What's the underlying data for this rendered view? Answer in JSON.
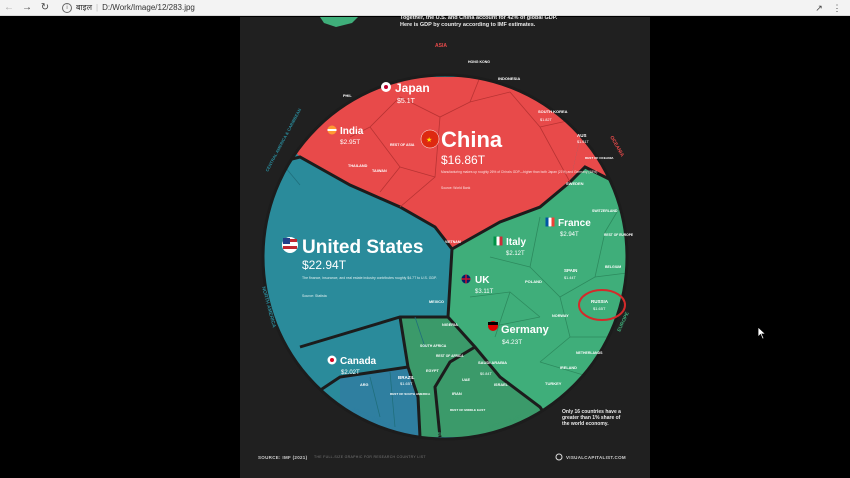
{
  "toolbar": {
    "back_icon": "arrow-left-icon",
    "forward_icon": "arrow-right-icon",
    "reload_icon": "reload-icon",
    "info_icon": "info-icon",
    "file_label": "बाइल",
    "path": "D:/Work/Image/12/283.jpg",
    "share_icon": "share-icon",
    "more_icon": "more-icon"
  },
  "poster": {
    "heading_line1": "Together, the U.S. and China account for 42% of global GDP.",
    "heading_line2": "Here is GDP by country according to IMF estimates.",
    "source": "SOURCE: IMF (2021)",
    "source_note": "THE FULL-SIZE GRAPHIC FOR RESEARCH COUNTRY LIST",
    "brand": "VISUALCAPITALIST.COM",
    "footnote_line1": "Only 16 countries have a",
    "footnote_line2": "greater than 1% share of",
    "footnote_line3": "the world economy.",
    "colors": {
      "asia": "#e84a4a",
      "north_america": "#2a8b9b",
      "europe": "#3fae7a",
      "south_america": "#2f7fa0",
      "africa": "#3b9a6a",
      "middle_east": "#3b9a6a",
      "oceania": "#e84a4a",
      "russia_highlight": "#d42a2a"
    },
    "regions": {
      "asia": "ASIA",
      "oceania": "OCEANIA",
      "europe": "EUROPE",
      "north_america": "NORTH AMERICA",
      "central_america": "CENTRAL AMERICA & CARIBBEAN",
      "south_america": "SOUTH AMERICA",
      "africa": "AFRICA",
      "middle_east": "MIDDLE EAST"
    },
    "countries": {
      "us_name": "United States",
      "us_value": "$22.94T",
      "us_note": "The finance, insurance, and real estate industry contributes roughly $4.7T to U.S. GDP.",
      "us_source": "Source: Statista",
      "china_name": "China",
      "china_value": "$16.86T",
      "china_note": "Manufacturing makes up roughly 26% of China's GDP—higher than both Japan (21%) and Germany (18%).",
      "china_source": "Source: World Bank",
      "japan_name": "Japan",
      "japan_value": "$5.1T",
      "india_name": "India",
      "india_value": "$2.95T",
      "germany_name": "Germany",
      "germany_value": "$4.23T",
      "uk_name": "UK",
      "uk_value": "$3.11T",
      "france_name": "France",
      "france_value": "$2.94T",
      "italy_name": "Italy",
      "italy_value": "$2.12T",
      "canada_name": "Canada",
      "canada_value": "$2.02T",
      "russia_name": "RUSSIA",
      "russia_value": "$1.65T",
      "brazil_name": "BRAZIL",
      "brazil_value": "$1.65T",
      "korea_name": "SOUTH KOREA",
      "korea_value": "$1.82T",
      "aus_name": "AUS",
      "aus_value": "$1.61T",
      "indonesia_name": "INDONESIA",
      "spain_name": "SPAIN",
      "spain_value": "$1.44T",
      "netherlands_name": "NETHERLANDS",
      "poland_name": "POLAND",
      "sweden_name": "SWEDEN",
      "switzerland_name": "SWITZERLAND",
      "belgium_name": "BELGIUM",
      "norway_name": "NORWAY",
      "ireland_name": "IRELAND",
      "turkey_name": "TURKEY",
      "saudi_name": "SAUDI ARABIA",
      "saudi_value": "$0.84T",
      "iran_name": "IRAN",
      "israel_name": "ISRAEL",
      "uae_name": "UAE",
      "egypt_name": "EGYPT",
      "nigeria_name": "NIGERIA",
      "south_africa_name": "SOUTH AFRICA",
      "mexico_name": "MEXICO",
      "argentina_name": "ARG",
      "taiwan_name": "TAIWAN",
      "thailand_name": "THAILAND",
      "hong_kong_name": "HONG KONG",
      "vietnam_name": "VIETNAM",
      "philippines_name": "PHIL",
      "rest_asia": "REST OF ASIA",
      "rest_europe": "REST OF EUROPE",
      "rest_africa": "REST OF AFRICA",
      "rest_middle_east": "REST OF MIDDLE EAST",
      "rest_south_america": "REST OF SOUTH AMERICA",
      "rest_oceania": "REST OF OCEANIA"
    }
  }
}
